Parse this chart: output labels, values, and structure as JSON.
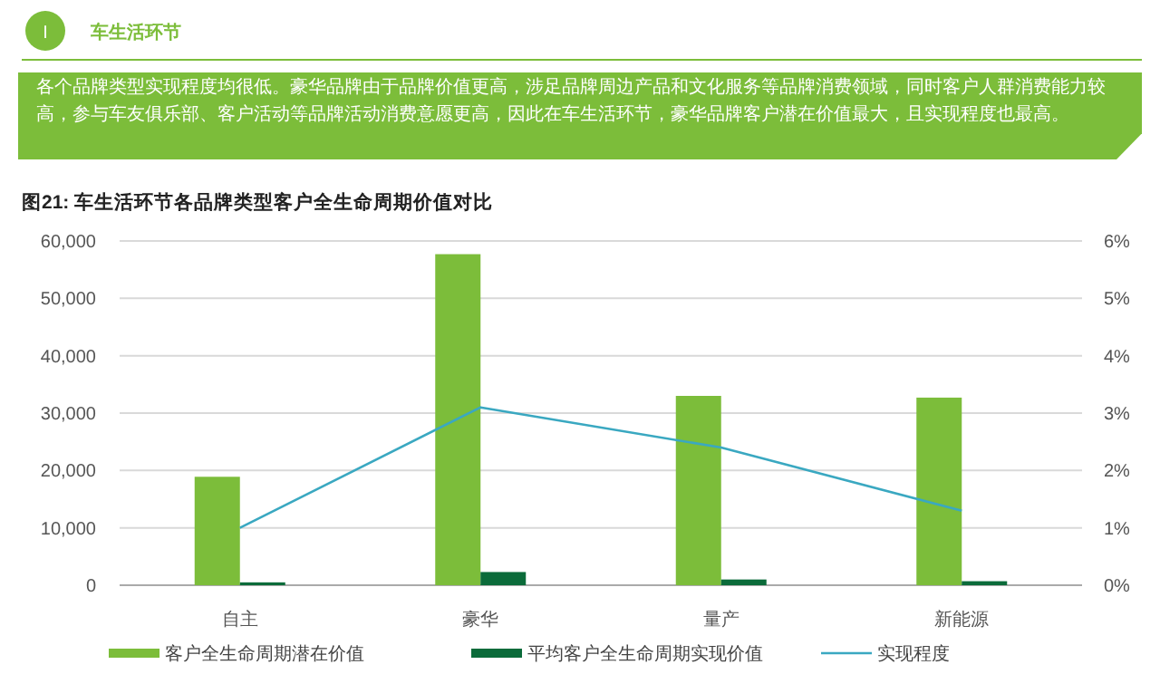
{
  "chart_data": {
    "type": "bar",
    "title": "图21: 车生活环节各品牌类型客户全生命周期价值对比",
    "annotations": [
      "I",
      "车生活环节",
      "各个品牌类型实现程度均很低。豪华品牌由于品牌价值更高，涉足品牌周边产品和文化服务等品牌消费领域，同时客户人群消费能力较高，参与车友俱乐部、客户活动等品牌活动消费意愿更高，因此在车生活环节，豪华品牌客户潜在价值最大，且实现程度也最高。"
    ],
    "categories": [
      "自主",
      "豪华",
      "量产",
      "新能源"
    ],
    "series": [
      {
        "name": "客户全生命周期潜在价值",
        "type": "bar",
        "color": "#7cbd3a",
        "values": [
          18900,
          57700,
          33000,
          32700
        ]
      },
      {
        "name": "平均客户全生命周期实现价值",
        "type": "bar",
        "color": "#0b6b3a",
        "values": [
          500,
          2300,
          1000,
          700
        ]
      },
      {
        "name": "实现程度",
        "type": "line",
        "axis": "y2",
        "color": "#3aa8c1",
        "values": [
          1.0,
          3.1,
          2.4,
          1.3
        ]
      }
    ],
    "ylim": [
      0,
      60000
    ],
    "yticks": [
      0,
      {
        "value": 10000,
        "label": "10,000"
      },
      {
        "value": 20000,
        "label": "20,000"
      },
      {
        "value": 30000,
        "label": "30,000"
      },
      {
        "value": 40000,
        "label": "40,000"
      },
      {
        "value": 50000,
        "label": "50,000"
      },
      {
        "value": 60000,
        "label": "60,000"
      }
    ],
    "y2lim": [
      0,
      6
    ],
    "y2ticks": [
      {
        "value": 0,
        "label": "0%"
      },
      {
        "value": 1,
        "label": "1%"
      },
      {
        "value": 2,
        "label": "2%"
      },
      {
        "value": 3,
        "label": "3%"
      },
      {
        "value": 4,
        "label": "4%"
      },
      {
        "value": 5,
        "label": "5%"
      },
      {
        "value": 6,
        "label": "6%"
      }
    ],
    "grid": "y",
    "legend": "bottom"
  }
}
